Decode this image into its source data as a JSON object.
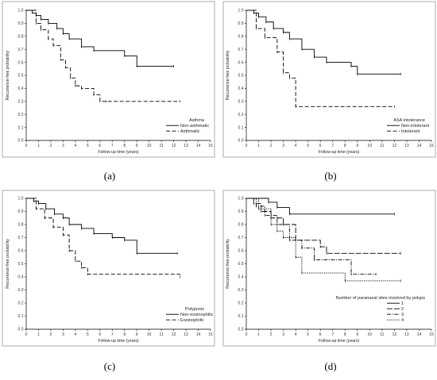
{
  "chart_data": [
    {
      "type": "line",
      "panel_label": "(a)",
      "xlabel": "Follow-up time (years)",
      "ylabel": "Recurrence-free probability",
      "xlim": [
        0,
        15
      ],
      "ylim": [
        0,
        1
      ],
      "x_ticks": [
        "0",
        "1",
        "2",
        "3",
        "4",
        "5",
        "6",
        "7",
        "8",
        "9",
        "10",
        "11",
        "12",
        "13",
        "14",
        "15"
      ],
      "y_ticks": [
        "0.0",
        "0.1",
        "0.2",
        "0.3",
        "0.4",
        "0.5",
        "0.6",
        "0.7",
        "0.8",
        "0.9",
        "1.0"
      ],
      "legend_title": "Asthma",
      "legend_position": "bottom-right",
      "series": [
        {
          "name": "Non-asthmatic",
          "dash": "solid",
          "x": [
            0,
            0.5,
            0.8,
            1.2,
            1.8,
            2.5,
            3.0,
            3.5,
            4.5,
            5.5,
            8.0,
            9.0,
            12.0
          ],
          "y": [
            1.0,
            0.98,
            0.96,
            0.93,
            0.9,
            0.86,
            0.82,
            0.78,
            0.72,
            0.69,
            0.65,
            0.57,
            0.57
          ]
        },
        {
          "name": "Asthmatic",
          "dash": "dashed",
          "x": [
            0,
            0.8,
            1.2,
            1.8,
            2.2,
            2.8,
            3.2,
            3.6,
            4.0,
            4.5,
            5.5,
            6.0,
            6.5,
            12.5
          ],
          "y": [
            1.0,
            0.9,
            0.85,
            0.78,
            0.73,
            0.62,
            0.56,
            0.48,
            0.42,
            0.4,
            0.35,
            0.3,
            0.3,
            0.3
          ]
        }
      ]
    },
    {
      "type": "line",
      "panel_label": "(b)",
      "xlabel": "Follow-up time (years)",
      "ylabel": "Recurrence-free probability",
      "xlim": [
        0,
        15
      ],
      "ylim": [
        0,
        1
      ],
      "x_ticks": [
        "0",
        "1",
        "2",
        "3",
        "4",
        "5",
        "6",
        "7",
        "8",
        "9",
        "10",
        "11",
        "12",
        "13",
        "14",
        "15"
      ],
      "y_ticks": [
        "0.0",
        "0.1",
        "0.2",
        "0.3",
        "0.4",
        "0.5",
        "0.6",
        "0.7",
        "0.8",
        "0.9",
        "1.0"
      ],
      "legend_title": "ASA intolerance",
      "legend_position": "bottom-right",
      "series": [
        {
          "name": "Non-intolerant",
          "dash": "solid",
          "x": [
            0,
            0.6,
            1.0,
            1.6,
            2.2,
            3.0,
            3.5,
            4.5,
            5.5,
            6.5,
            8.5,
            9.0,
            12.5
          ],
          "y": [
            1.0,
            0.98,
            0.95,
            0.91,
            0.86,
            0.83,
            0.78,
            0.7,
            0.64,
            0.6,
            0.57,
            0.51,
            0.51
          ]
        },
        {
          "name": "Intolerant",
          "dash": "dashed",
          "x": [
            0,
            0.8,
            1.5,
            2.5,
            3.0,
            3.5,
            4.0,
            12.0
          ],
          "y": [
            1.0,
            0.86,
            0.79,
            0.68,
            0.52,
            0.48,
            0.26,
            0.26
          ]
        }
      ]
    },
    {
      "type": "line",
      "panel_label": "(c)",
      "xlabel": "Follow-up time (years)",
      "ylabel": "Recurrence-free probability",
      "xlim": [
        0,
        15
      ],
      "ylim": [
        0,
        1
      ],
      "x_ticks": [
        "0",
        "1",
        "2",
        "3",
        "4",
        "5",
        "6",
        "7",
        "8",
        "9",
        "10",
        "11",
        "12",
        "13",
        "14",
        "15"
      ],
      "y_ticks": [
        "0.0",
        "0.1",
        "0.2",
        "0.3",
        "0.4",
        "0.5",
        "0.6",
        "0.7",
        "0.8",
        "0.9",
        "1.0"
      ],
      "legend_title": "Polyposis",
      "legend_position": "bottom-right",
      "series": [
        {
          "name": "Non-eosinophilic",
          "dash": "solid",
          "x": [
            0,
            0.6,
            1.0,
            1.6,
            2.3,
            3.0,
            3.5,
            4.5,
            5.5,
            7.0,
            8.0,
            9.0,
            12.3
          ],
          "y": [
            1.0,
            0.98,
            0.96,
            0.92,
            0.88,
            0.85,
            0.8,
            0.77,
            0.73,
            0.7,
            0.68,
            0.58,
            0.58
          ]
        },
        {
          "name": "Eosinophilic",
          "dash": "dashed",
          "x": [
            0,
            0.8,
            1.5,
            2.2,
            3.0,
            3.5,
            4.0,
            4.5,
            5.0,
            12.5
          ],
          "y": [
            1.0,
            0.92,
            0.85,
            0.78,
            0.72,
            0.6,
            0.52,
            0.47,
            0.42,
            0.4
          ]
        }
      ]
    },
    {
      "type": "line",
      "panel_label": "(d)",
      "xlabel": "Follow-up time (years)",
      "ylabel": "Recurrence-free probability",
      "xlim": [
        0,
        15
      ],
      "ylim": [
        0,
        1
      ],
      "x_ticks": [
        "0",
        "1",
        "2",
        "3",
        "4",
        "5",
        "6",
        "7",
        "8",
        "9",
        "10",
        "11",
        "12",
        "13",
        "14",
        "15"
      ],
      "y_ticks": [
        "0.0",
        "0.1",
        "0.2",
        "0.3",
        "0.4",
        "0.5",
        "0.6",
        "0.7",
        "0.8",
        "0.9",
        "1.0"
      ],
      "legend_title": "Number of paranasal sites involved by polyps",
      "legend_position": "bottom-right",
      "series": [
        {
          "name": "1",
          "dash": "solid",
          "x": [
            0,
            1.8,
            2.5,
            3.5,
            12.0
          ],
          "y": [
            1.0,
            0.97,
            0.93,
            0.88,
            0.88
          ]
        },
        {
          "name": "2",
          "dash": "longdash",
          "x": [
            0,
            0.6,
            1.2,
            2.0,
            3.0,
            4.0,
            6.0,
            6.5,
            12.5
          ],
          "y": [
            1.0,
            0.96,
            0.9,
            0.85,
            0.8,
            0.68,
            0.63,
            0.58,
            0.58
          ]
        },
        {
          "name": "3",
          "dash": "dashdot",
          "x": [
            0,
            0.8,
            1.5,
            2.5,
            3.5,
            4.5,
            5.5,
            8.5,
            10.5
          ],
          "y": [
            1.0,
            0.94,
            0.87,
            0.8,
            0.68,
            0.62,
            0.53,
            0.42,
            0.42
          ]
        },
        {
          "name": "4",
          "dash": "dotted",
          "x": [
            0,
            1.0,
            2.0,
            2.5,
            3.0,
            4.0,
            4.5,
            8.0,
            12.5
          ],
          "y": [
            1.0,
            0.92,
            0.8,
            0.75,
            0.7,
            0.55,
            0.43,
            0.37,
            0.37
          ]
        }
      ]
    }
  ]
}
